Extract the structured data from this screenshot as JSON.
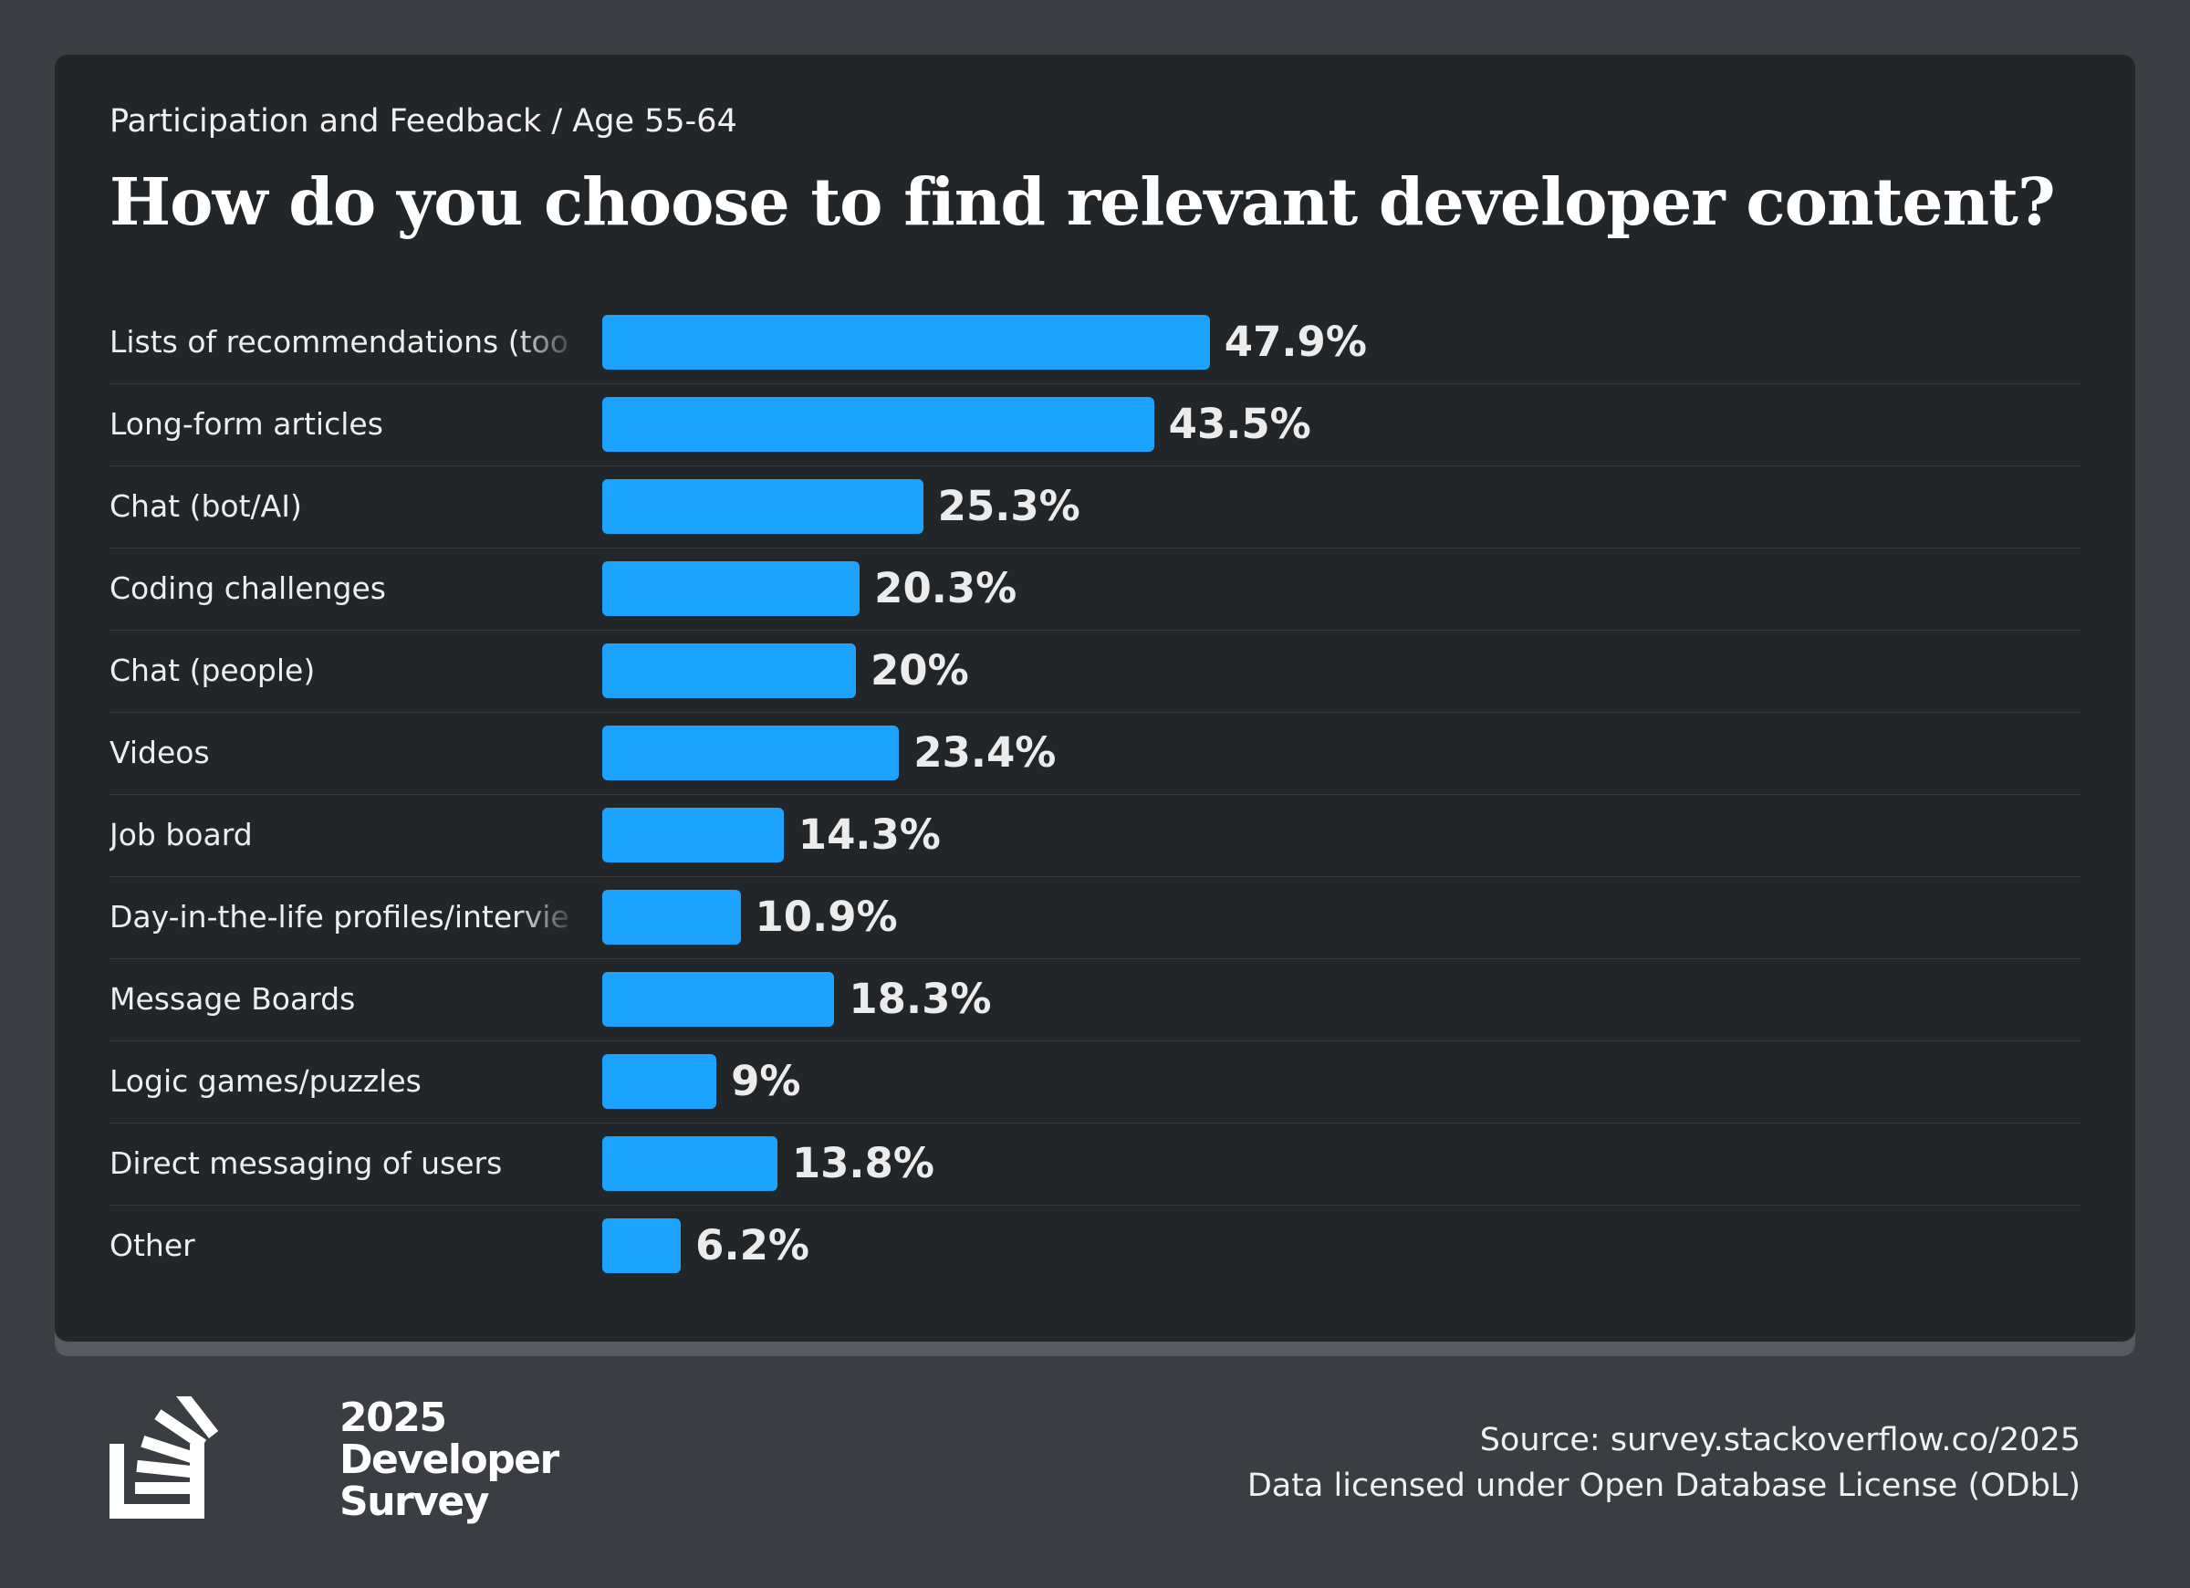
{
  "header": {
    "breadcrumb": "Participation and Feedback / Age 55-64",
    "title": "How do you choose to find relevant developer content?"
  },
  "chart_data": {
    "type": "bar",
    "orientation": "horizontal",
    "title": "How do you choose to find relevant developer content?",
    "categories": [
      "Lists of recommendations (tools, etc.)",
      "Long-form articles",
      "Chat (bot/AI)",
      "Coding challenges",
      "Chat (people)",
      "Videos",
      "Job board",
      "Day-in-the-life profiles/interviews",
      "Message Boards",
      "Logic games/puzzles",
      "Direct messaging of users",
      "Other"
    ],
    "values": [
      47.9,
      43.5,
      25.3,
      20.3,
      20,
      23.4,
      14.3,
      10.9,
      18.3,
      9,
      13.8,
      6.2
    ],
    "value_labels": [
      "47.9%",
      "43.5%",
      "25.3%",
      "20.3%",
      "20%",
      "23.4%",
      "14.3%",
      "10.9%",
      "18.3%",
      "9%",
      "13.8%",
      "6.2%"
    ],
    "unit": "%",
    "xlim": [
      0,
      100
    ],
    "grid": false,
    "bar_color": "#1ca3ff"
  },
  "logo": {
    "year": "2025",
    "line1": "Developer",
    "line2": "Survey"
  },
  "footer": {
    "source": "Source: survey.stackoverflow.co/2025",
    "license": "Data licensed under Open Database License (ODbL)"
  }
}
